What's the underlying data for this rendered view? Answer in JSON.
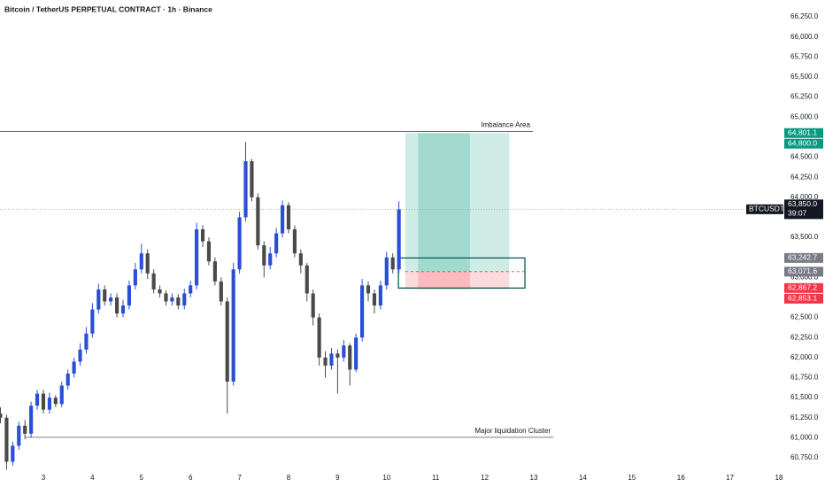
{
  "chart_data": {
    "type": "candlestick",
    "title": "Bitcoin / TetherUS PERPETUAL CONTRACT · 1h · Binance",
    "up_color": "#2a4fd6",
    "down_color": "#4a4a4a",
    "xlim": [
      2.116,
      18.09
    ],
    "ylim": [
      60584,
      66461
    ],
    "xticks": [
      3,
      4,
      5,
      6,
      7,
      8,
      9,
      10,
      11,
      12,
      13,
      14,
      15,
      16,
      17,
      18
    ],
    "yticks": [
      {
        "value": 66250,
        "label": "66,250.0"
      },
      {
        "value": 66000,
        "label": "66,000.0"
      },
      {
        "value": 65750,
        "label": "65,750.0"
      },
      {
        "value": 65500,
        "label": "65,500.0"
      },
      {
        "value": 65250,
        "label": "65,250.0"
      },
      {
        "value": 65000,
        "label": "65,000.0"
      },
      {
        "value": 64500,
        "label": "64,500.0"
      },
      {
        "value": 64250,
        "label": "64,250.0"
      },
      {
        "value": 64000,
        "label": "64,000.0"
      },
      {
        "value": 63500,
        "label": "63,500.0"
      },
      {
        "value": 63000,
        "label": "63,000.0"
      },
      {
        "value": 62500,
        "label": "62,500.0"
      },
      {
        "value": 62250,
        "label": "62,250.0"
      },
      {
        "value": 62000,
        "label": "62,000.0"
      },
      {
        "value": 61750,
        "label": "61,750.0"
      },
      {
        "value": 61500,
        "label": "61,500.0"
      },
      {
        "value": 61250,
        "label": "61,250.0"
      },
      {
        "value": 61000,
        "label": "61,000.0"
      },
      {
        "value": 60750,
        "label": "60,750.0"
      }
    ],
    "x": [
      2.125,
      2.25,
      2.375,
      2.5,
      2.625,
      2.75,
      2.875,
      3.0,
      3.125,
      3.25,
      3.375,
      3.5,
      3.625,
      3.75,
      3.875,
      4.0,
      4.125,
      4.25,
      4.375,
      4.5,
      4.625,
      4.75,
      4.875,
      5.0,
      5.125,
      5.25,
      5.375,
      5.5,
      5.625,
      5.75,
      5.875,
      6.0,
      6.125,
      6.25,
      6.375,
      6.5,
      6.625,
      6.75,
      6.875,
      7.0,
      7.125,
      7.25,
      7.375,
      7.5,
      7.625,
      7.75,
      7.875,
      8.0,
      8.125,
      8.25,
      8.375,
      8.5,
      8.625,
      8.75,
      8.875,
      9.0,
      9.125,
      9.25,
      9.375,
      9.5,
      9.625,
      9.75,
      9.875,
      10.0,
      10.125,
      10.25
    ],
    "open": [
      61300,
      61250,
      60700,
      60900,
      61150,
      61050,
      61400,
      61550,
      61350,
      61500,
      61420,
      61650,
      61800,
      61950,
      62100,
      62300,
      62600,
      62850,
      62700,
      62750,
      62550,
      62650,
      62900,
      63100,
      63300,
      63050,
      62850,
      62800,
      62700,
      62750,
      62650,
      62800,
      62900,
      63600,
      63450,
      63200,
      62950,
      62700,
      61700,
      63100,
      63750,
      64450,
      64000,
      63400,
      63150,
      63300,
      63550,
      63900,
      63600,
      63300,
      63150,
      62800,
      62500,
      62000,
      61900,
      62050,
      62000,
      62150,
      61850,
      62250,
      62900,
      62800,
      62650,
      62900,
      63250,
      63100
    ],
    "high": [
      61380,
      61290,
      60950,
      61200,
      61220,
      61450,
      61600,
      61600,
      61560,
      61530,
      61700,
      61850,
      62000,
      62180,
      62380,
      62680,
      62920,
      62900,
      62800,
      62800,
      62720,
      62960,
      63180,
      63420,
      63350,
      63100,
      62900,
      62840,
      62800,
      62790,
      62860,
      62960,
      63680,
      63650,
      63500,
      63250,
      63000,
      62750,
      63180,
      63820,
      64690,
      64480,
      64050,
      63450,
      63380,
      63620,
      63960,
      63940,
      63650,
      63350,
      63180,
      62850,
      62550,
      62080,
      62120,
      62100,
      62220,
      62180,
      62300,
      62980,
      62950,
      62850,
      62960,
      63320,
      63300,
      63950
    ],
    "low": [
      61180,
      60600,
      60650,
      60850,
      60980,
      61000,
      61350,
      61300,
      61300,
      61380,
      61380,
      61600,
      61750,
      61900,
      62050,
      62250,
      62550,
      62650,
      62650,
      62500,
      62500,
      62600,
      62850,
      63050,
      62980,
      62800,
      62750,
      62650,
      62650,
      62600,
      62600,
      62750,
      62850,
      63380,
      63150,
      62900,
      62650,
      61300,
      61650,
      63050,
      63700,
      63950,
      63350,
      63000,
      63100,
      63250,
      63500,
      63550,
      63250,
      63050,
      62700,
      62400,
      61900,
      61750,
      61850,
      61550,
      61950,
      61650,
      61820,
      62200,
      62700,
      62550,
      62600,
      62850,
      63050,
      63050
    ],
    "close": [
      61250,
      60700,
      60900,
      61150,
      61050,
      61400,
      61550,
      61350,
      61500,
      61420,
      61650,
      61800,
      61950,
      62100,
      62300,
      62600,
      62850,
      62700,
      62750,
      62550,
      62650,
      62900,
      63100,
      63300,
      63050,
      62850,
      62800,
      62700,
      62750,
      62650,
      62800,
      62900,
      63600,
      63450,
      63200,
      62950,
      62700,
      61700,
      63100,
      63750,
      64450,
      64000,
      63400,
      63150,
      63300,
      63550,
      63900,
      63600,
      63300,
      63150,
      62800,
      62500,
      62000,
      61900,
      62050,
      62000,
      62150,
      61850,
      62250,
      62900,
      62800,
      62650,
      62900,
      63250,
      63100,
      63850
    ],
    "hlines": [
      {
        "label": "Imbalance Area",
        "value": 64820,
        "x_start": 2.116,
        "x_end": 12.98
      },
      {
        "label": "Major liquidation Cluster",
        "value": 61005,
        "x_start": 2.62,
        "x_end": 13.4
      }
    ],
    "current_price": {
      "symbol": "BTCUSDT.P",
      "value": 63850,
      "label": "63,850.0",
      "countdown": "39:07"
    },
    "price_labels": [
      {
        "value": 64801.1,
        "label": "64,801.1",
        "color": "#089981"
      },
      {
        "value": 64800.0,
        "label": "64,800.0",
        "color": "#089981"
      },
      {
        "value": 63242.7,
        "label": "63,242.7",
        "color": "#787b86"
      },
      {
        "value": 63071.6,
        "label": "63,071.6",
        "color": "#787b86"
      },
      {
        "value": 62867.2,
        "label": "62,867.2",
        "color": "#f23645"
      },
      {
        "value": 62853.1,
        "label": "62,853.1",
        "color": "#f23645"
      }
    ],
    "position_x": [
      10.38,
      12.5
    ],
    "position_highlight_x": [
      10.64,
      11.7
    ],
    "zone_x": [
      10.24,
      12.82
    ]
  }
}
